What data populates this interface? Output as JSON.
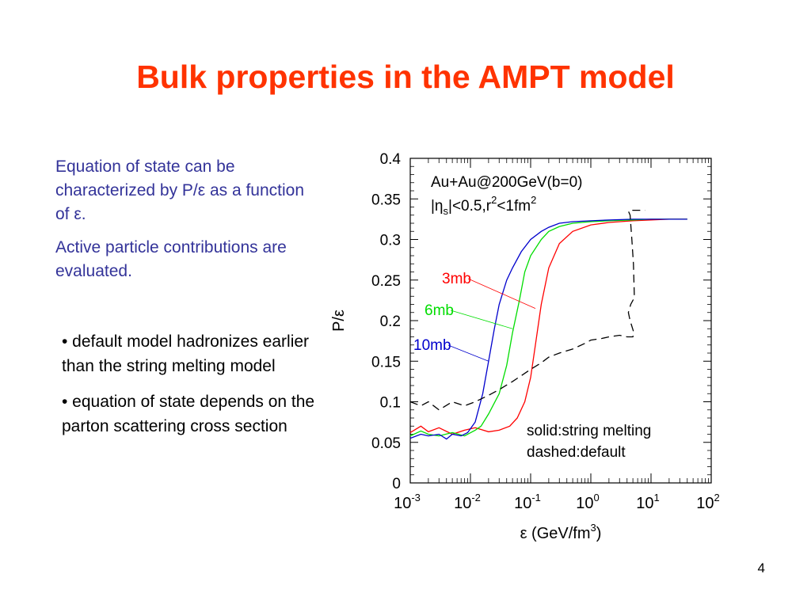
{
  "slide": {
    "title": "Bulk properties in the AMPT model",
    "intro": [
      "Equation of state can be characterized by P/ε as a function of ε.",
      "Active particle contributions are evaluated."
    ],
    "bullets": [
      "• default model hadronizes earlier than the string melting model",
      "• equation of state depends on the parton scattering cross section"
    ],
    "page_number": "4"
  },
  "colors": {
    "title": "#ff3300",
    "intro_text": "#333399",
    "red": "#ff0000",
    "green": "#00dd00",
    "blue": "#0000cc",
    "default": "#000000"
  },
  "chart_data": {
    "type": "line",
    "xscale": "log",
    "xlim": [
      0.001,
      100
    ],
    "ylim": [
      0,
      0.4
    ],
    "xlabel": "ε (GeV/fm3)",
    "ylabel": "P/ε",
    "xticks": [
      {
        "base": "10",
        "exp": "-3"
      },
      {
        "base": "10",
        "exp": "-2"
      },
      {
        "base": "10",
        "exp": "-1"
      },
      {
        "base": "10",
        "exp": "0"
      },
      {
        "base": "10",
        "exp": "1"
      },
      {
        "base": "10",
        "exp": "2"
      }
    ],
    "yticks": [
      "0",
      "0.05",
      "0.1",
      "0.15",
      "0.2",
      "0.25",
      "0.3",
      "0.35",
      "0.4"
    ],
    "annotation_lines": [
      "Au+Au@200GeV(b=0)",
      "|ηs|<0.5,r2<1fm2"
    ],
    "legend_text": [
      "solid:string melting",
      "dashed:default"
    ],
    "series": [
      {
        "name": "3mb",
        "color": "#ff0000",
        "style": "solid",
        "x": [
          0.001,
          0.0015,
          0.002,
          0.003,
          0.005,
          0.008,
          0.012,
          0.02,
          0.03,
          0.045,
          0.06,
          0.08,
          0.1,
          0.12,
          0.15,
          0.2,
          0.3,
          0.5,
          1,
          2,
          5,
          10,
          20,
          40
        ],
        "y": [
          0.062,
          0.07,
          0.063,
          0.068,
          0.06,
          0.065,
          0.068,
          0.063,
          0.065,
          0.07,
          0.08,
          0.1,
          0.13,
          0.17,
          0.22,
          0.265,
          0.295,
          0.31,
          0.318,
          0.321,
          0.323,
          0.324,
          0.325,
          0.325
        ]
      },
      {
        "name": "6mb",
        "color": "#00dd00",
        "style": "solid",
        "x": [
          0.001,
          0.0015,
          0.002,
          0.003,
          0.005,
          0.008,
          0.012,
          0.015,
          0.02,
          0.03,
          0.04,
          0.05,
          0.065,
          0.08,
          0.1,
          0.15,
          0.2,
          0.3,
          0.5,
          1,
          2,
          5,
          10,
          20,
          40
        ],
        "y": [
          0.058,
          0.064,
          0.06,
          0.058,
          0.062,
          0.058,
          0.065,
          0.07,
          0.085,
          0.11,
          0.145,
          0.185,
          0.225,
          0.26,
          0.28,
          0.3,
          0.31,
          0.316,
          0.32,
          0.322,
          0.323,
          0.324,
          0.325,
          0.325,
          0.325
        ]
      },
      {
        "name": "10mb",
        "color": "#0000cc",
        "style": "solid",
        "x": [
          0.001,
          0.0015,
          0.002,
          0.003,
          0.004,
          0.005,
          0.007,
          0.009,
          0.012,
          0.016,
          0.02,
          0.025,
          0.03,
          0.04,
          0.05,
          0.07,
          0.1,
          0.15,
          0.2,
          0.3,
          0.5,
          1,
          2,
          5,
          10,
          20,
          40
        ],
        "y": [
          0.055,
          0.06,
          0.058,
          0.06,
          0.054,
          0.06,
          0.058,
          0.062,
          0.075,
          0.11,
          0.15,
          0.19,
          0.22,
          0.25,
          0.265,
          0.285,
          0.3,
          0.31,
          0.315,
          0.32,
          0.322,
          0.323,
          0.324,
          0.325,
          0.325,
          0.325,
          0.325
        ]
      },
      {
        "name": "default",
        "color": "#000000",
        "style": "dashed",
        "x": [
          0.001,
          0.0015,
          0.002,
          0.003,
          0.005,
          0.008,
          0.012,
          0.02,
          0.03,
          0.05,
          0.08,
          0.1,
          0.15,
          0.2,
          0.3,
          0.5,
          0.8,
          1,
          1.5,
          2,
          3,
          4,
          5,
          5.2,
          4.5,
          4.2,
          4.6,
          5,
          5.3,
          5.1,
          4.8,
          4.5,
          4.2,
          4.5,
          6,
          8
        ],
        "y": [
          0.1,
          0.095,
          0.1,
          0.09,
          0.1,
          0.095,
          0.1,
          0.108,
          0.115,
          0.125,
          0.135,
          0.14,
          0.148,
          0.155,
          0.16,
          0.165,
          0.172,
          0.176,
          0.178,
          0.18,
          0.182,
          0.18,
          0.18,
          0.185,
          0.2,
          0.21,
          0.22,
          0.225,
          0.228,
          0.27,
          0.3,
          0.33,
          0.335,
          0.336,
          0.336,
          0.336
        ]
      }
    ],
    "series_labels": [
      {
        "text": "3mb",
        "color": "#ff0000",
        "at_x": 0.12,
        "at_y": 0.215
      },
      {
        "text": "6mb",
        "color": "#00dd00",
        "at_x": 0.05,
        "at_y": 0.19
      },
      {
        "text": "10mb",
        "color": "#0000cc",
        "at_x": 0.02,
        "at_y": 0.15
      }
    ]
  }
}
